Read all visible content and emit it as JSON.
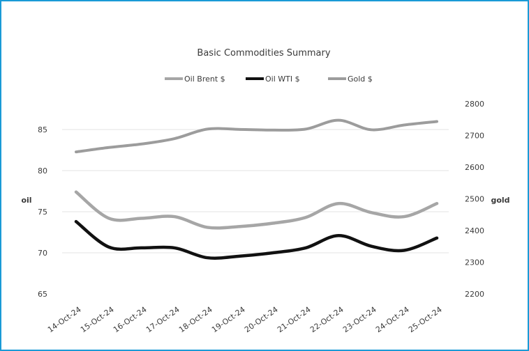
{
  "chart_data": {
    "type": "line",
    "title": "Basic Commodities Summary",
    "xlabel": "",
    "ylabel": "oil",
    "y2label": "gold",
    "categories": [
      "14-Oct-24",
      "15-Oct-24",
      "16-Oct-24",
      "17-Oct-24",
      "18-Oct-24",
      "19-Oct-24",
      "20-Oct-24",
      "21-Oct-24",
      "22-Oct-24",
      "23-Oct-24",
      "24-Oct-24",
      "25-Oct-24"
    ],
    "ylim": [
      65,
      85
    ],
    "yticks": [
      65,
      70,
      75,
      80,
      85
    ],
    "y2lim": [
      2200,
      2800
    ],
    "y2ticks": [
      2200,
      2300,
      2400,
      2500,
      2600,
      2700,
      2800
    ],
    "legend_position": "top",
    "grid": true,
    "series": [
      {
        "name": "Oil Brent $",
        "axis": "left",
        "color": "#a6a6a6",
        "values": [
          77.4,
          74.2,
          74.2,
          74.4,
          73.1,
          73.2,
          73.6,
          74.3,
          76.0,
          74.9,
          74.4,
          76.0
        ]
      },
      {
        "name": "Oil WTI $",
        "axis": "left",
        "color": "#111111",
        "values": [
          73.8,
          70.7,
          70.6,
          70.6,
          69.4,
          69.6,
          70.0,
          70.6,
          72.1,
          70.8,
          70.3,
          71.8
        ]
      },
      {
        "name": "Gold $",
        "axis": "right",
        "color": "#9c9c9c",
        "values": [
          2648,
          2662,
          2673,
          2690,
          2720,
          2719,
          2717,
          2720,
          2748,
          2718,
          2733,
          2744
        ]
      }
    ]
  }
}
